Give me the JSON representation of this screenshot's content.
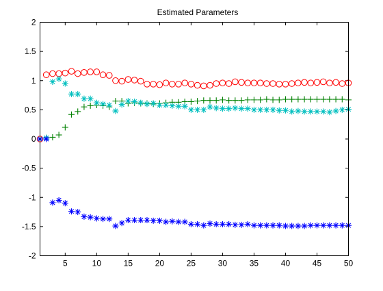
{
  "chart_data": {
    "type": "scatter",
    "title": "Estimated Parameters",
    "xlabel": "",
    "ylabel": "",
    "xlim": [
      1,
      50
    ],
    "ylim": [
      -2,
      2
    ],
    "xticks": [
      5,
      10,
      15,
      20,
      25,
      30,
      35,
      40,
      45,
      50
    ],
    "xtick_labels": [
      "5",
      "10",
      "15",
      "20",
      "25",
      "30",
      "35",
      "40",
      "45",
      "50"
    ],
    "yticks": [
      -2,
      -1.5,
      -1,
      -0.5,
      0,
      0.5,
      1,
      1.5,
      2
    ],
    "ytick_labels": [
      "-2",
      "-1.5",
      "-1",
      "-0.5",
      "0",
      "0.5",
      "1",
      "1.5",
      "2"
    ],
    "grid": false,
    "legend": "none",
    "x": [
      1,
      2,
      3,
      4,
      5,
      6,
      7,
      8,
      9,
      10,
      11,
      12,
      13,
      14,
      15,
      16,
      17,
      18,
      19,
      20,
      21,
      22,
      23,
      24,
      25,
      26,
      27,
      28,
      29,
      30,
      31,
      32,
      33,
      34,
      35,
      36,
      37,
      38,
      39,
      40,
      41,
      42,
      43,
      44,
      45,
      46,
      47,
      48,
      49,
      50
    ],
    "series": [
      {
        "marker": "circle",
        "color": "#ff0000",
        "values": [
          0.0,
          1.1,
          1.12,
          1.12,
          1.13,
          1.16,
          1.12,
          1.14,
          1.15,
          1.15,
          1.1,
          1.09,
          1.0,
          0.99,
          1.02,
          1.01,
          0.99,
          0.94,
          0.94,
          0.93,
          0.96,
          0.94,
          0.94,
          0.96,
          0.94,
          0.92,
          0.91,
          0.92,
          0.95,
          0.96,
          0.95,
          0.98,
          0.97,
          0.96,
          0.96,
          0.96,
          0.95,
          0.95,
          0.94,
          0.94,
          0.95,
          0.96,
          0.97,
          0.96,
          0.97,
          0.98,
          0.96,
          0.97,
          0.95,
          0.96
        ]
      },
      {
        "marker": "plus",
        "color": "#008000",
        "values": [
          0.0,
          0.02,
          0.03,
          0.07,
          0.2,
          0.42,
          0.47,
          0.55,
          0.57,
          0.58,
          0.57,
          0.55,
          0.65,
          0.65,
          0.61,
          0.62,
          0.61,
          0.61,
          0.6,
          0.61,
          0.62,
          0.63,
          0.63,
          0.64,
          0.64,
          0.65,
          0.66,
          0.66,
          0.66,
          0.67,
          0.66,
          0.66,
          0.66,
          0.67,
          0.67,
          0.67,
          0.68,
          0.67,
          0.67,
          0.68,
          0.68,
          0.68,
          0.68,
          0.68,
          0.68,
          0.68,
          0.68,
          0.68,
          0.68,
          0.67
        ]
      },
      {
        "marker": "star",
        "color": "#00bfbf",
        "values": [
          0.0,
          0.02,
          0.98,
          1.03,
          0.95,
          0.77,
          0.77,
          0.69,
          0.69,
          0.62,
          0.6,
          0.58,
          0.48,
          0.59,
          0.65,
          0.64,
          0.62,
          0.6,
          0.61,
          0.58,
          0.58,
          0.57,
          0.56,
          0.56,
          0.5,
          0.5,
          0.5,
          0.55,
          0.53,
          0.52,
          0.52,
          0.53,
          0.52,
          0.52,
          0.5,
          0.5,
          0.5,
          0.5,
          0.49,
          0.49,
          0.47,
          0.48,
          0.47,
          0.47,
          0.47,
          0.47,
          0.46,
          0.48,
          0.5,
          0.51
        ]
      },
      {
        "marker": "star",
        "color": "#0000ff",
        "values": [
          0.0,
          0.0,
          -1.09,
          -1.05,
          -1.1,
          -1.24,
          -1.25,
          -1.33,
          -1.34,
          -1.36,
          -1.37,
          -1.37,
          -1.49,
          -1.44,
          -1.39,
          -1.39,
          -1.39,
          -1.39,
          -1.4,
          -1.4,
          -1.42,
          -1.41,
          -1.42,
          -1.42,
          -1.46,
          -1.46,
          -1.48,
          -1.45,
          -1.46,
          -1.46,
          -1.46,
          -1.47,
          -1.47,
          -1.46,
          -1.48,
          -1.48,
          -1.48,
          -1.48,
          -1.48,
          -1.49,
          -1.49,
          -1.49,
          -1.49,
          -1.48,
          -1.48,
          -1.48,
          -1.48,
          -1.48,
          -1.48,
          -1.48
        ]
      }
    ]
  }
}
